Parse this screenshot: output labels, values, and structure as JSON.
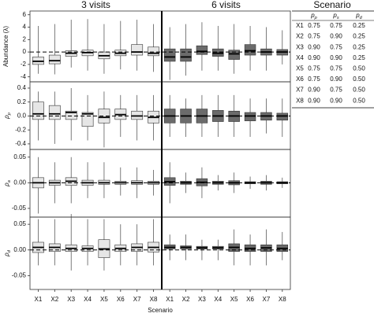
{
  "chart_data": {
    "type": "box",
    "groups": [
      "3 visits",
      "6 visits"
    ],
    "categories": [
      "X1",
      "X2",
      "X3",
      "X4",
      "X5",
      "X6",
      "X7",
      "X8"
    ],
    "xlabel": "Scenario",
    "panels": [
      {
        "ylabel": "Abundance (λ)",
        "ylim": [
          -4.8,
          6.6
        ],
        "yticks": [
          -4,
          -2,
          0,
          2,
          4,
          6
        ],
        "reference": 0,
        "series": [
          {
            "color": "#e6e6e6",
            "low": [
              -3.5,
              -3.6,
              -2.5,
              -3,
              -3.5,
              -2.8,
              -3,
              -3.2
            ],
            "q1": [
              -2.0,
              -1.9,
              -0.7,
              -0.6,
              -1.1,
              -0.6,
              -0.5,
              -0.6
            ],
            "median": [
              -1.5,
              -1.4,
              -0.2,
              -0.1,
              -0.6,
              -0.2,
              0.0,
              -0.2
            ],
            "q3": [
              -0.8,
              -0.5,
              0.2,
              0.3,
              0.0,
              0.3,
              1.2,
              0.8
            ],
            "high": [
              4.2,
              4.5,
              5.2,
              5.3,
              4.5,
              5.0,
              5.2,
              4.5
            ]
          },
          {
            "color": "#6b6b6b",
            "low": [
              -4.5,
              -3.8,
              -3.0,
              -3.0,
              -3.5,
              -3.0,
              -3.0,
              -2.0
            ],
            "q1": [
              -1.5,
              -1.5,
              -0.4,
              -0.7,
              -1.2,
              -0.5,
              -0.5,
              -0.5
            ],
            "median": [
              -0.8,
              -0.8,
              0.1,
              -0.2,
              -0.3,
              0.2,
              0.0,
              0.0
            ],
            "q3": [
              0.5,
              0.5,
              1.0,
              0.5,
              0.3,
              1.2,
              0.5,
              0.4
            ],
            "high": [
              4.0,
              4.5,
              4.8,
              4.2,
              4.5,
              4.2,
              4.0,
              3.5
            ]
          }
        ]
      },
      {
        "ylabel": {
          "symbol": "ρ",
          "subscript": "p"
        },
        "ylim": [
          -0.48,
          0.49
        ],
        "yticks": [
          -0.4,
          -0.2,
          {
            "value": 0,
            "label": "0.0"
          },
          0.2,
          0.4
        ],
        "reference": 0,
        "series": [
          {
            "color": "#e6e6e6",
            "low": [
              -0.35,
              -0.4,
              -0.35,
              -0.35,
              -0.45,
              -0.3,
              -0.35,
              -0.35
            ],
            "q1": [
              -0.05,
              -0.05,
              -0.05,
              -0.15,
              -0.1,
              -0.05,
              -0.05,
              -0.1
            ],
            "median": [
              0.03,
              0.03,
              0.05,
              0.03,
              -0.02,
              0.02,
              0.0,
              -0.02
            ],
            "q3": [
              0.2,
              0.15,
              0.07,
              0.05,
              0.1,
              0.1,
              0.07,
              0.07
            ],
            "high": [
              0.35,
              0.35,
              0.4,
              0.3,
              0.35,
              0.3,
              0.3,
              0.3
            ]
          },
          {
            "color": "#6b6b6b",
            "low": [
              -0.3,
              -0.3,
              -0.3,
              -0.3,
              -0.3,
              -0.3,
              -0.25,
              -0.3
            ],
            "q1": [
              -0.1,
              -0.1,
              -0.1,
              -0.08,
              -0.08,
              -0.07,
              -0.06,
              -0.06
            ],
            "median": [
              0.0,
              0.0,
              0.0,
              0.0,
              0.0,
              0.0,
              0.0,
              0.0
            ],
            "q3": [
              0.1,
              0.1,
              0.1,
              0.08,
              0.07,
              0.05,
              0.05,
              0.04
            ],
            "high": [
              0.3,
              0.25,
              0.3,
              0.3,
              0.3,
              0.25,
              0.25,
              0.25
            ]
          }
        ]
      },
      {
        "ylabel": {
          "symbol": "ρ",
          "subscript": "a"
        },
        "ylim": [
          -0.067,
          0.065
        ],
        "yticks": [
          -0.05,
          {
            "value": 0,
            "label": "0.00"
          },
          0.05
        ],
        "reference": 0,
        "series": [
          {
            "color": "#e6e6e6",
            "low": [
              -0.06,
              -0.04,
              -0.04,
              -0.03,
              -0.03,
              -0.025,
              -0.03,
              -0.025
            ],
            "q1": [
              -0.01,
              -0.005,
              -0.005,
              -0.005,
              -0.003,
              -0.003,
              -0.003,
              -0.003
            ],
            "median": [
              0,
              0,
              0.003,
              0,
              0,
              0,
              0,
              0
            ],
            "q3": [
              0.01,
              0.005,
              0.01,
              0.005,
              0.005,
              0.003,
              0.004,
              0.003
            ],
            "high": [
              0.05,
              0.04,
              0.05,
              0.04,
              0.04,
              0.03,
              0.03,
              0.025
            ]
          },
          {
            "color": "#6b6b6b",
            "low": [
              -0.04,
              -0.02,
              -0.03,
              -0.015,
              -0.02,
              -0.012,
              -0.015,
              -0.01
            ],
            "q1": [
              -0.005,
              -0.003,
              -0.006,
              -0.003,
              -0.004,
              -0.002,
              -0.003,
              -0.002
            ],
            "median": [
              0.002,
              0,
              0.001,
              0,
              0,
              0,
              0,
              0
            ],
            "q3": [
              0.01,
              0.003,
              0.008,
              0.003,
              0.004,
              0.002,
              0.003,
              0.002
            ],
            "high": [
              0.04,
              0.02,
              0.03,
              0.015,
              0.02,
              0.012,
              0.015,
              0.01
            ]
          }
        ]
      },
      {
        "ylabel": {
          "symbol": "ρ",
          "subscript": "d"
        },
        "ylim": [
          -0.077,
          0.064
        ],
        "yticks": [
          -0.05,
          {
            "value": 0,
            "label": "0.00"
          },
          0.05
        ],
        "reference": 0,
        "series": [
          {
            "color": "#e6e6e6",
            "low": [
              -0.03,
              -0.03,
              -0.04,
              -0.03,
              -0.04,
              -0.03,
              -0.03,
              -0.03
            ],
            "q1": [
              -0.005,
              -0.003,
              -0.003,
              -0.003,
              -0.015,
              -0.003,
              -0.003,
              -0.004
            ],
            "median": [
              0.005,
              0.005,
              0.003,
              0.003,
              0.002,
              0.003,
              0.005,
              0.005
            ],
            "q3": [
              0.015,
              0.012,
              0.01,
              0.008,
              0.02,
              0.01,
              0.012,
              0.015
            ],
            "high": [
              0.06,
              0.06,
              0.07,
              0.06,
              0.06,
              0.05,
              0.05,
              0.06
            ]
          },
          {
            "color": "#6b6b6b",
            "low": [
              -0.02,
              -0.02,
              -0.02,
              -0.02,
              -0.03,
              -0.03,
              -0.03,
              -0.02
            ],
            "q1": [
              0.002,
              0.002,
              0.002,
              0.002,
              -0.003,
              -0.003,
              -0.003,
              -0.003
            ],
            "median": [
              0.005,
              0.005,
              0.004,
              0.004,
              0.005,
              0.003,
              0.004,
              0.003
            ],
            "q3": [
              0.01,
              0.008,
              0.007,
              0.007,
              0.012,
              0.01,
              0.01,
              0.01
            ],
            "high": [
              0.03,
              0.03,
              0.02,
              0.02,
              0.04,
              0.03,
              0.04,
              0.035
            ]
          }
        ]
      }
    ]
  },
  "table": {
    "title": "Scenario",
    "header": [
      {
        "symbol": "p",
        "subscript": "p"
      },
      {
        "symbol": "p",
        "subscript": "s"
      },
      {
        "symbol": "p",
        "subscript": "d"
      }
    ],
    "rows": [
      [
        "X1",
        "0.75",
        "0.75",
        "0.25"
      ],
      [
        "X2",
        "0.75",
        "0.90",
        "0.25"
      ],
      [
        "X3",
        "0.90",
        "0.75",
        "0.25"
      ],
      [
        "X4",
        "0.90",
        "0.90",
        "0.25"
      ],
      [
        "X5",
        "0.75",
        "0.75",
        "0.50"
      ],
      [
        "X6",
        "0.75",
        "0.90",
        "0.50"
      ],
      [
        "X7",
        "0.90",
        "0.75",
        "0.50"
      ],
      [
        "X8",
        "0.90",
        "0.90",
        "0.50"
      ]
    ]
  }
}
